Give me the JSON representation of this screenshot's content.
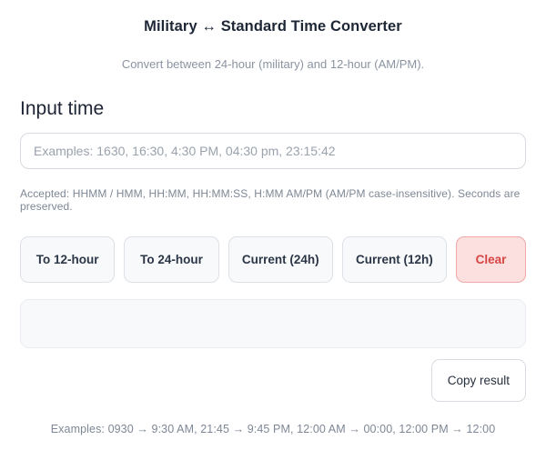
{
  "header": {
    "title": "Military ↔ Standard Time Converter",
    "subtitle": "Convert between 24-hour (military) and 12-hour (AM/PM)."
  },
  "input_section": {
    "heading": "Input time",
    "value": "",
    "placeholder": "Examples: 1630, 16:30, 4:30 PM, 04:30 pm, 23:15:42",
    "help_text": "Accepted: HHMM / HMM, HH:MM, HH:MM:SS, H:MM AM/PM (AM/PM case-insensitive). Seconds are preserved."
  },
  "actions": {
    "buttons": [
      {
        "label": "To 12-hour",
        "variant": "default"
      },
      {
        "label": "To 24-hour",
        "variant": "default"
      },
      {
        "label": "Current (24h)",
        "variant": "default"
      },
      {
        "label": "Current (12h)",
        "variant": "default"
      },
      {
        "label": "Clear",
        "variant": "danger"
      }
    ]
  },
  "result": {
    "value": "",
    "copy_button_label": "Copy result"
  },
  "footer": {
    "examples": "Examples: 0930 → 9:30 AM, 21:45 → 9:45 PM, 12:00 AM → 00:00, 12:00 PM → 12:00"
  },
  "colors": {
    "title_text": "#1e2736",
    "muted_text": "#7e8795",
    "button_bg": "#f8f9fa",
    "button_border": "#dde1e7",
    "button_text": "#2b3647",
    "danger_bg": "#fcdfdf",
    "danger_border": "#f0a8a8",
    "danger_text": "#d64543",
    "input_border": "#d6dae0",
    "result_bg": "#f8f9fa"
  }
}
